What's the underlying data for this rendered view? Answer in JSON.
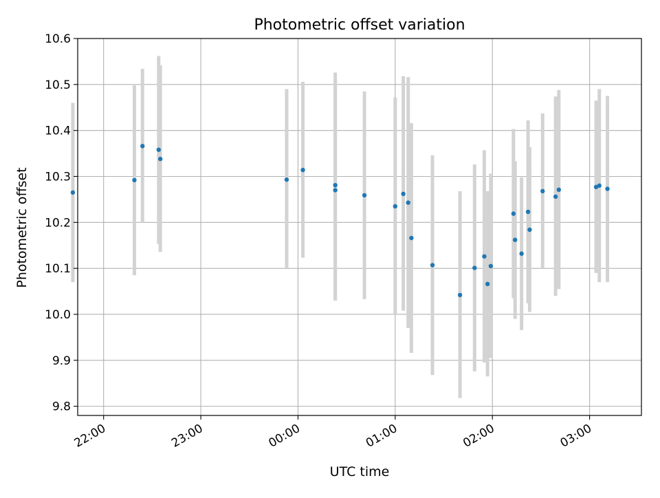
{
  "chart_data": {
    "type": "scatter",
    "title": "Photometric offset variation",
    "xlabel": "UTC time",
    "ylabel": "Photometric offset",
    "x_unit": "UTC time (HH:MM)",
    "xlim": [
      "21:44",
      "03:32"
    ],
    "ylim": [
      9.78,
      10.6
    ],
    "grid": true,
    "x_ticks": [
      "22:00",
      "23:00",
      "00:00",
      "01:00",
      "02:00",
      "03:00"
    ],
    "y_ticks": [
      "9.8",
      "9.9",
      "10.0",
      "10.1",
      "10.2",
      "10.3",
      "10.4",
      "10.5",
      "10.6"
    ],
    "colors": {
      "point": "#1f77b4",
      "errorbar": "#d3d3d3",
      "grid": "#b0b0b0"
    },
    "points": [
      {
        "x": "21:41",
        "y": 10.265,
        "err_low": 10.07,
        "err_high": 10.46
      },
      {
        "x": "22:19",
        "y": 10.292,
        "err_low": 10.085,
        "err_high": 10.498
      },
      {
        "x": "22:24",
        "y": 10.366,
        "err_low": 10.2,
        "err_high": 10.534
      },
      {
        "x": "22:34",
        "y": 10.358,
        "err_low": 10.153,
        "err_high": 10.562
      },
      {
        "x": "22:35",
        "y": 10.338,
        "err_low": 10.136,
        "err_high": 10.542
      },
      {
        "x": "23:53",
        "y": 10.293,
        "err_low": 10.1,
        "err_high": 10.49
      },
      {
        "x": "00:03",
        "y": 10.314,
        "err_low": 10.123,
        "err_high": 10.506
      },
      {
        "x": "00:23",
        "y": 10.281,
        "err_low": 10.03,
        "err_high": 10.526
      },
      {
        "x": "00:23",
        "y": 10.27,
        "err_low": 10.03,
        "err_high": 10.51
      },
      {
        "x": "00:41",
        "y": 10.259,
        "err_low": 10.033,
        "err_high": 10.485
      },
      {
        "x": "01:00",
        "y": 10.235,
        "err_low": 10.0,
        "err_high": 10.472
      },
      {
        "x": "01:05",
        "y": 10.262,
        "err_low": 10.008,
        "err_high": 10.518
      },
      {
        "x": "01:08",
        "y": 10.243,
        "err_low": 9.97,
        "err_high": 10.516
      },
      {
        "x": "01:10",
        "y": 10.166,
        "err_low": 9.916,
        "err_high": 10.416
      },
      {
        "x": "01:23",
        "y": 10.107,
        "err_low": 9.868,
        "err_high": 10.346
      },
      {
        "x": "01:40",
        "y": 10.042,
        "err_low": 9.818,
        "err_high": 10.268
      },
      {
        "x": "01:49",
        "y": 10.101,
        "err_low": 9.876,
        "err_high": 10.326
      },
      {
        "x": "01:55",
        "y": 10.126,
        "err_low": 9.895,
        "err_high": 10.357
      },
      {
        "x": "01:57",
        "y": 10.066,
        "err_low": 9.865,
        "err_high": 10.268
      },
      {
        "x": "01:59",
        "y": 10.105,
        "err_low": 9.905,
        "err_high": 10.306
      },
      {
        "x": "02:13",
        "y": 10.219,
        "err_low": 10.035,
        "err_high": 10.403
      },
      {
        "x": "02:14",
        "y": 10.162,
        "err_low": 9.99,
        "err_high": 10.333
      },
      {
        "x": "02:18",
        "y": 10.132,
        "err_low": 9.966,
        "err_high": 10.298
      },
      {
        "x": "02:22",
        "y": 10.223,
        "err_low": 10.024,
        "err_high": 10.422
      },
      {
        "x": "02:23",
        "y": 10.184,
        "err_low": 10.005,
        "err_high": 10.364
      },
      {
        "x": "02:31",
        "y": 10.268,
        "err_low": 10.1,
        "err_high": 10.437
      },
      {
        "x": "02:39",
        "y": 10.256,
        "err_low": 10.04,
        "err_high": 10.474
      },
      {
        "x": "02:41",
        "y": 10.271,
        "err_low": 10.055,
        "err_high": 10.488
      },
      {
        "x": "03:04",
        "y": 10.277,
        "err_low": 10.09,
        "err_high": 10.465
      },
      {
        "x": "03:06",
        "y": 10.28,
        "err_low": 10.07,
        "err_high": 10.49
      },
      {
        "x": "03:11",
        "y": 10.273,
        "err_low": 10.07,
        "err_high": 10.475
      }
    ]
  }
}
